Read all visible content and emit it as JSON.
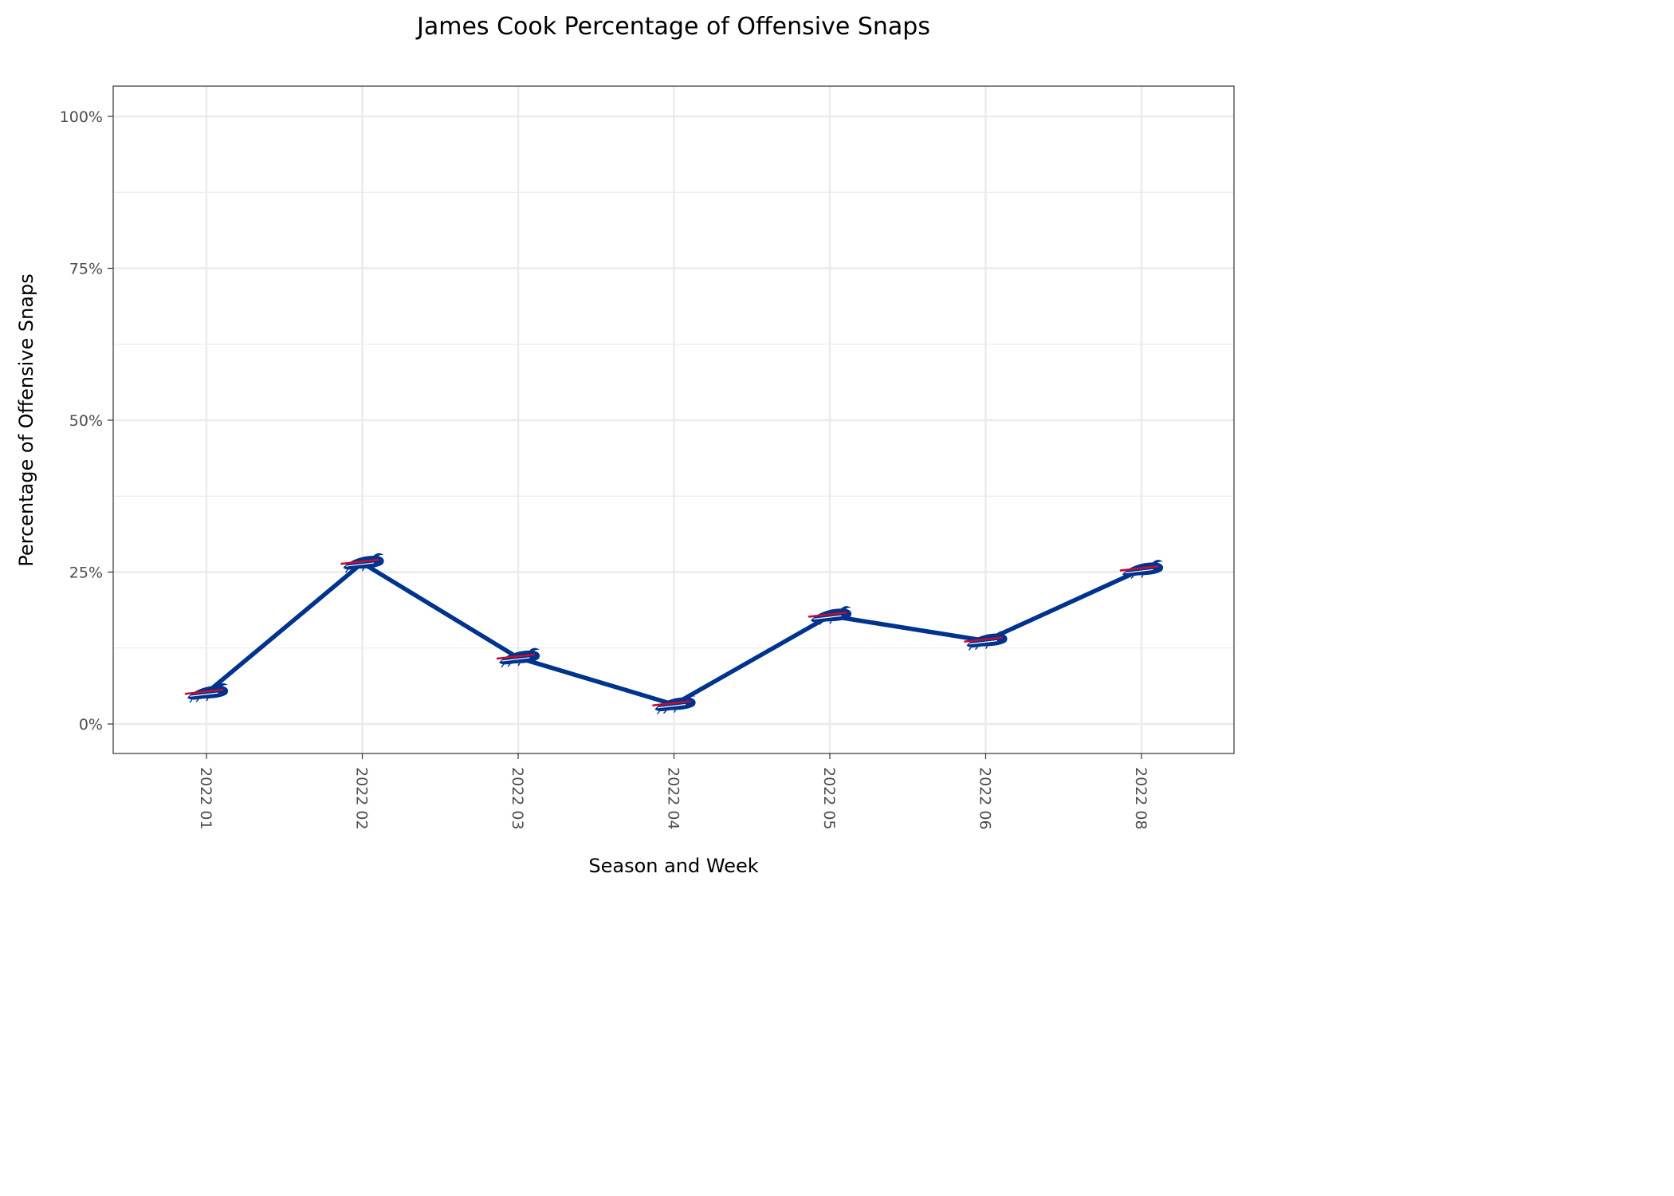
{
  "chart_data": {
    "type": "line",
    "title": "James Cook Percentage of Offensive Snaps",
    "xlabel": "Season and Week",
    "ylabel": "Percentage of Offensive Snaps",
    "categories": [
      "2022 01",
      "2022 02",
      "2022 03",
      "2022 04",
      "2022 05",
      "2022 06",
      "2022 08"
    ],
    "series": [
      {
        "values": [
          5.1,
          26.5,
          10.9,
          3.2,
          17.8,
          13.7,
          25.4
        ]
      }
    ],
    "ylim": [
      0,
      100
    ],
    "yticks": [
      0,
      25,
      50,
      75,
      100
    ],
    "ytick_labels": [
      "0%",
      "25%",
      "50%",
      "75%",
      "100%"
    ],
    "grid": true,
    "legend": "none",
    "colors": {
      "line": "#00338D",
      "marker_red": "#C60C30",
      "grid": "#EBEBEB",
      "panel_border": "#333333"
    },
    "marker_icon": "buffalo-bills-logo-icon"
  }
}
